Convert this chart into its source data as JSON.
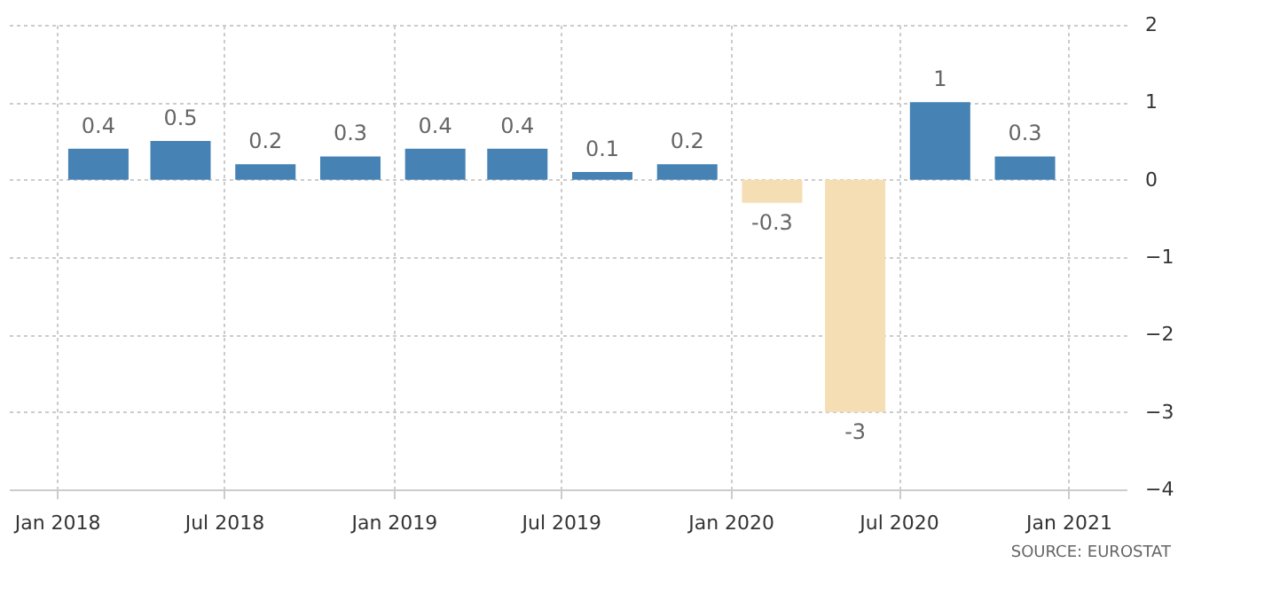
{
  "chart_data": {
    "type": "bar",
    "x": [
      "2018-02-15",
      "2018-05-15",
      "2018-08-15",
      "2018-11-15",
      "2019-02-15",
      "2019-05-15",
      "2019-08-15",
      "2019-11-15",
      "2020-02-15",
      "2020-05-15",
      "2020-08-15",
      "2020-11-15"
    ],
    "values": [
      0.4,
      0.5,
      0.2,
      0.3,
      0.4,
      0.4,
      0.1,
      0.2,
      -0.3,
      -3,
      1,
      0.3
    ],
    "colors": [
      "#4682b4",
      "#4682b4",
      "#4682b4",
      "#4682b4",
      "#4682b4",
      "#4682b4",
      "#4682b4",
      "#4682b4",
      "#f5deb3",
      "#f5deb3",
      "#4682b4",
      "#4682b4"
    ],
    "data_labels": true,
    "xlim": [
      "2017-11-10",
      "2021-03-05"
    ],
    "xticks": [
      {
        "value": "2018-01-01",
        "label": "Jan 2018"
      },
      {
        "value": "2018-07-01",
        "label": "Jul 2018"
      },
      {
        "value": "2019-01-01",
        "label": "Jan 2019"
      },
      {
        "value": "2019-07-01",
        "label": "Jul 2019"
      },
      {
        "value": "2020-01-01",
        "label": "Jan 2020"
      },
      {
        "value": "2020-07-01",
        "label": "Jul 2020"
      },
      {
        "value": "2021-01-01",
        "label": "Jan 2021"
      }
    ],
    "ylim": [
      -4,
      2
    ],
    "yticks": [
      -4,
      -3,
      -2,
      -1,
      0,
      1,
      2
    ],
    "grid": true,
    "annotations": [
      "SOURCE: EUROSTAT"
    ]
  }
}
